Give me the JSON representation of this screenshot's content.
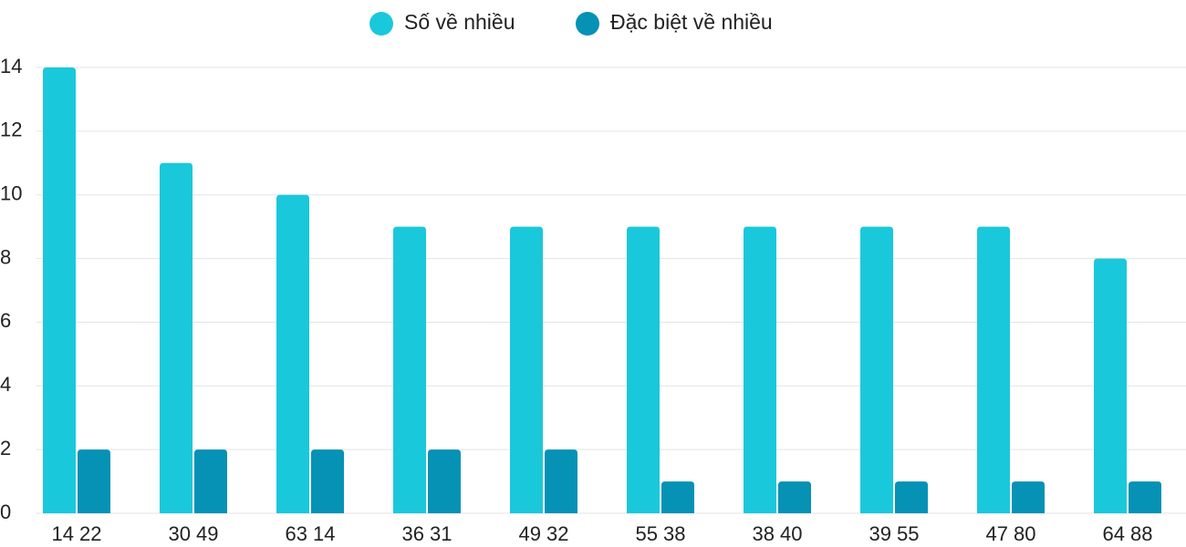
{
  "chart_data": {
    "type": "bar",
    "categories": [
      "14 22",
      "30 49",
      "63 14",
      "36 31",
      "49 32",
      "55 38",
      "38 40",
      "39 55",
      "47 80",
      "64 88"
    ],
    "series": [
      {
        "name": "Số về nhiều",
        "color": "#1ac8db",
        "values": [
          14,
          11,
          10,
          9,
          9,
          9,
          9,
          9,
          9,
          8
        ]
      },
      {
        "name": "Đặc biệt về nhiều",
        "color": "#0592b5",
        "values": [
          2,
          2,
          2,
          2,
          2,
          1,
          1,
          1,
          1,
          1
        ]
      }
    ],
    "ylim": [
      0,
      14
    ],
    "yticks": [
      0,
      2,
      4,
      6,
      8,
      10,
      12,
      14
    ],
    "grid": true,
    "legend": "top"
  }
}
